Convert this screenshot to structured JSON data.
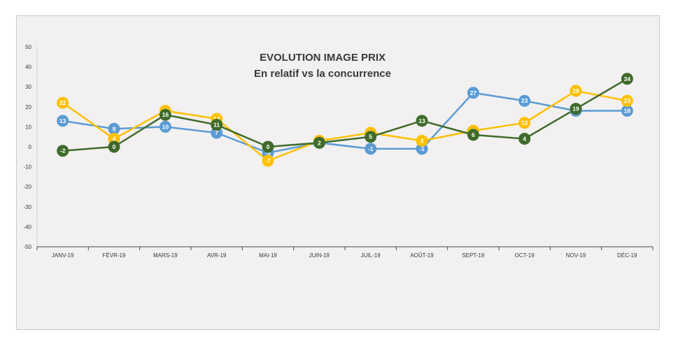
{
  "chart_data": {
    "type": "line",
    "title": "EVOLUTION IMAGE PRIX",
    "subtitle": "En relatif vs la concurrence",
    "xlabel": "",
    "ylabel": "",
    "categories": [
      "JANV-19",
      "FÉVR-19",
      "MARS-19",
      "AVR-19",
      "MAI-19",
      "JUIN-19",
      "JUIL-19",
      "AOÛT-19",
      "SEPT-19",
      "OCT-19",
      "NOV-19",
      "DÉC-19"
    ],
    "ylim": [
      -50,
      50
    ],
    "yticks": [
      "50",
      "40",
      "30",
      "20",
      "10",
      "0",
      "-10",
      "-20",
      "-30",
      "-40",
      "-50"
    ],
    "grid": false,
    "legend": "none",
    "series": [
      {
        "color": "#5b9bd5",
        "values": [
          13,
          9,
          10,
          7,
          -3,
          2,
          -1,
          -1,
          27,
          23,
          18,
          18
        ]
      },
      {
        "color": "#ffc000",
        "values": [
          22,
          4,
          18,
          14,
          -7,
          3,
          7,
          3,
          8,
          12,
          28,
          23
        ]
      },
      {
        "color": "#3f6b2a",
        "values": [
          -2,
          0,
          16,
          11,
          0,
          2,
          5,
          13,
          6,
          4,
          19,
          34
        ]
      }
    ],
    "point_labels": [
      [
        "13",
        "9",
        "10",
        "7",
        "-3",
        "2",
        "-1",
        "-1",
        "27",
        "23",
        "18",
        "18"
      ],
      [
        "22",
        "4",
        "18",
        "14",
        "-7",
        "3",
        "7",
        "3",
        "8",
        "12",
        "28",
        "23"
      ],
      [
        "-2",
        "0",
        "16",
        "11",
        "0",
        "2",
        "5",
        "13",
        "6",
        "4",
        "19",
        "34"
      ]
    ]
  }
}
